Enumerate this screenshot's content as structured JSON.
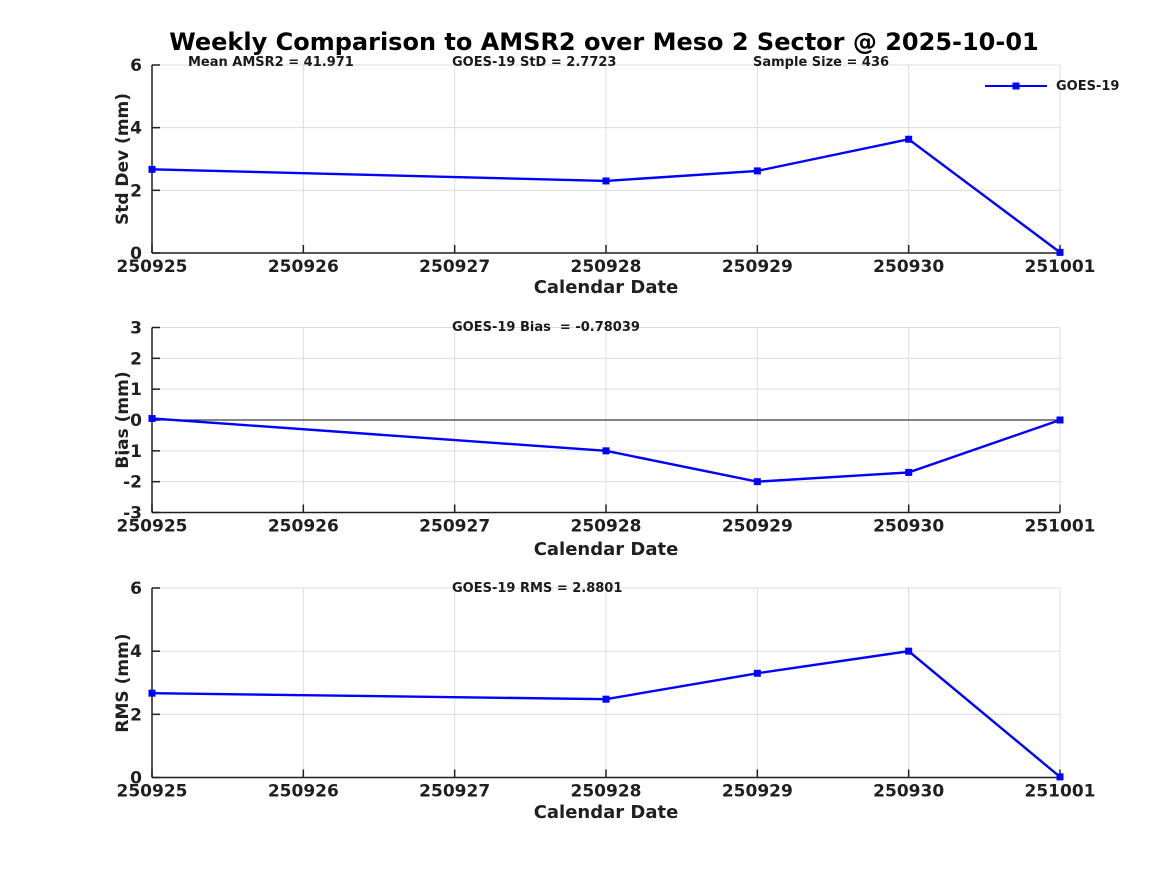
{
  "title": "Weekly Comparison to AMSR2 over Meso 2 Sector @ 2025-10-01",
  "colors": {
    "line": "#0000ff",
    "axis": "#1f1f1f",
    "grid": "#dcdcdc",
    "zero_line": "#3a3a3a",
    "text": "#1a1a1a",
    "background": "#ffffff"
  },
  "chart_data": [
    {
      "id": "std-dev",
      "type": "line",
      "ylabel": "Std Dev (mm)",
      "xlabel": "Calendar Date",
      "ylim": [
        0,
        6
      ],
      "yticks": [
        0,
        2,
        4,
        6
      ],
      "categories": [
        "250925",
        "250926",
        "250927",
        "250928",
        "250929",
        "250930",
        "251001"
      ],
      "grid": true,
      "zero_line": false,
      "annotations": [
        "Mean AMSR2 = 41.971",
        "GOES-19 StD = 2.7723",
        "Sample Size = 436"
      ],
      "series": [
        {
          "name": "GOES-19",
          "marker": "square",
          "x": [
            "250925",
            "250928",
            "250929",
            "250930",
            "251001"
          ],
          "values": [
            2.67,
            2.3,
            2.62,
            3.63,
            0.02
          ]
        }
      ],
      "legend": {
        "label": "GOES-19",
        "position": "top-right"
      }
    },
    {
      "id": "bias",
      "type": "line",
      "ylabel": "Bias (mm)",
      "xlabel": "Calendar Date",
      "ylim": [
        -3,
        3
      ],
      "yticks": [
        -3,
        -2,
        -1,
        0,
        1,
        2,
        3
      ],
      "categories": [
        "250925",
        "250926",
        "250927",
        "250928",
        "250929",
        "250930",
        "251001"
      ],
      "grid": true,
      "zero_line": true,
      "annotations": [
        "GOES-19 Bias  = -0.78039"
      ],
      "series": [
        {
          "name": "GOES-19",
          "marker": "square",
          "x": [
            "250925",
            "250928",
            "250929",
            "250930",
            "251001"
          ],
          "values": [
            0.05,
            -1.0,
            -2.0,
            -1.7,
            0.0
          ]
        }
      ]
    },
    {
      "id": "rms",
      "type": "line",
      "ylabel": "RMS (mm)",
      "xlabel": "Calendar Date",
      "ylim": [
        0,
        6
      ],
      "yticks": [
        0,
        2,
        4,
        6
      ],
      "categories": [
        "250925",
        "250926",
        "250927",
        "250928",
        "250929",
        "250930",
        "251001"
      ],
      "grid": true,
      "zero_line": false,
      "annotations": [
        "GOES-19 RMS = 2.8801"
      ],
      "series": [
        {
          "name": "GOES-19",
          "marker": "square",
          "x": [
            "250925",
            "250928",
            "250929",
            "250930",
            "251001"
          ],
          "values": [
            2.67,
            2.48,
            3.3,
            4.0,
            0.02
          ]
        }
      ]
    }
  ]
}
